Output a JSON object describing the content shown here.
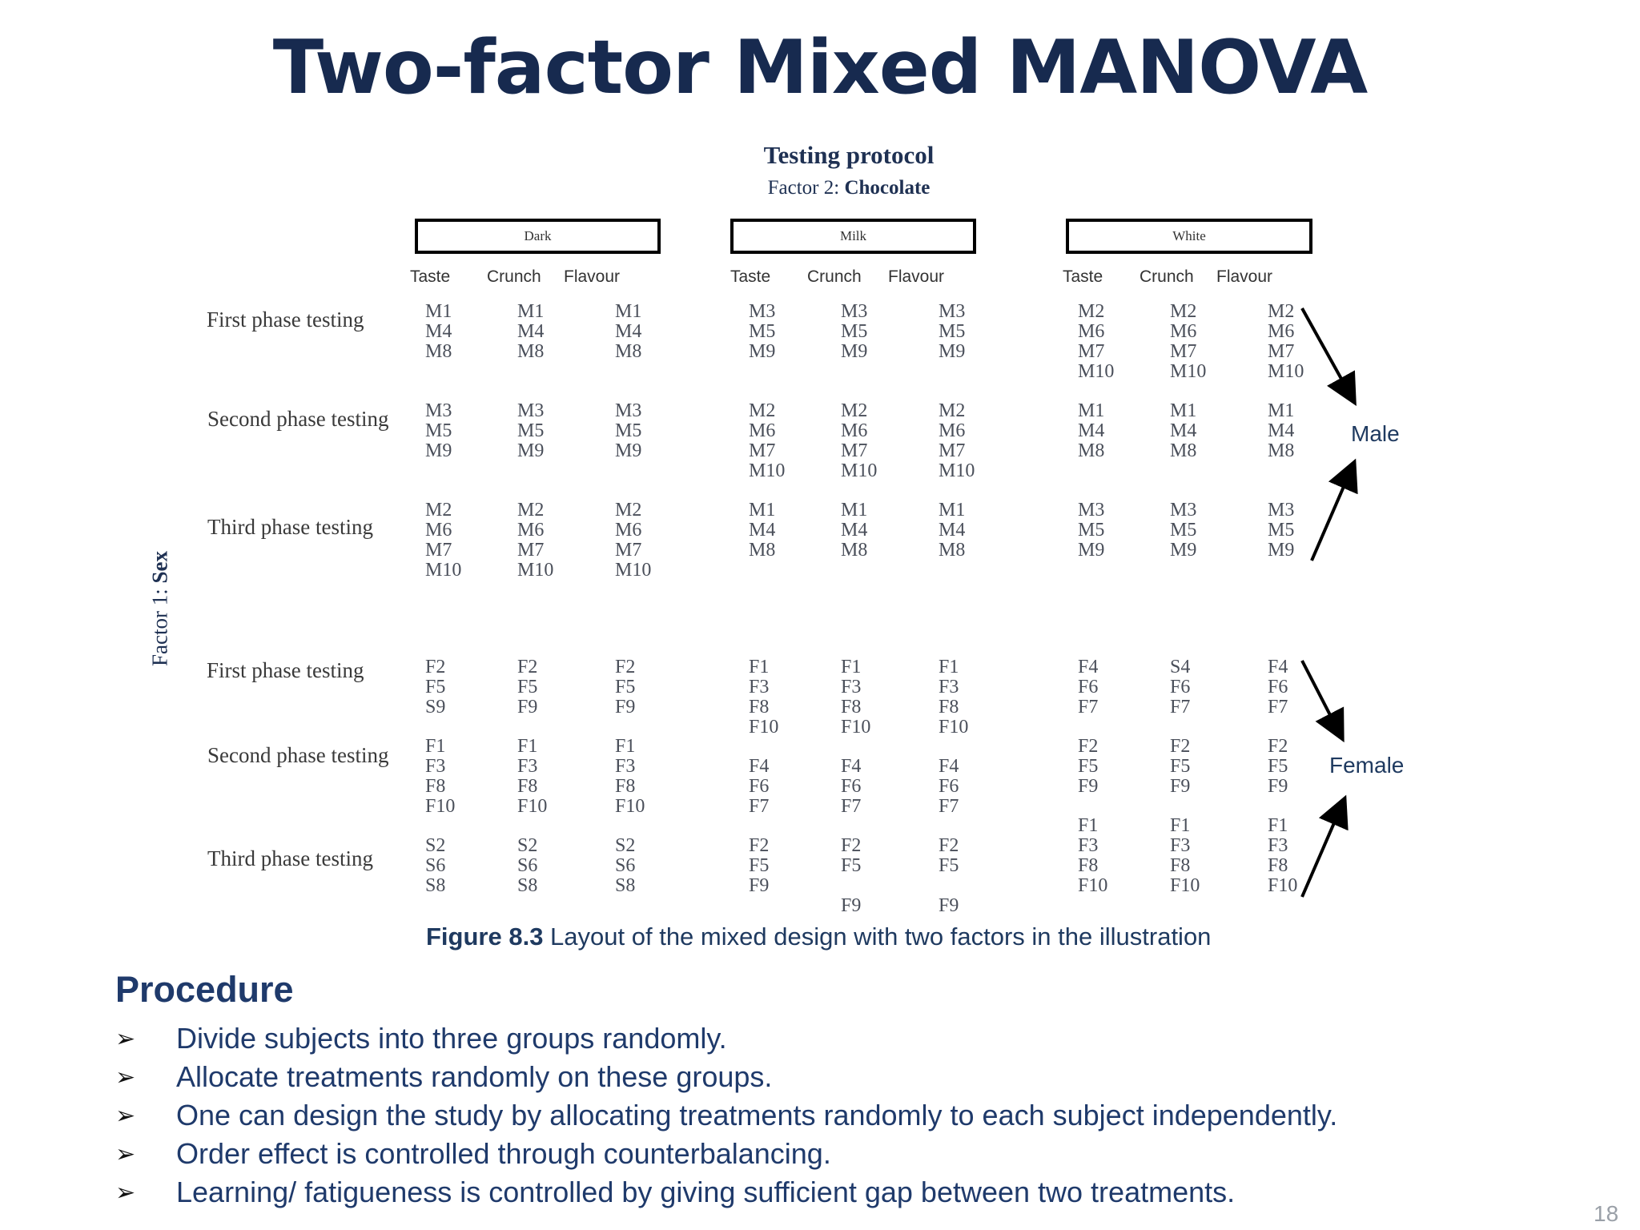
{
  "slide": {
    "title": "Two-factor Mixed MANOVA",
    "page_number": "18"
  },
  "figure": {
    "title": "Testing protocol",
    "subtitle_prefix": "Factor 2: ",
    "subtitle_bold": "Chocolate",
    "factor1_prefix": "Factor 1: ",
    "factor1_bold": "Sex",
    "chocolates": [
      "Dark",
      "Milk",
      "White"
    ],
    "attributes": [
      "Taste",
      "Crunch",
      "Flavour"
    ],
    "male_label": "Male",
    "female_label": "Female",
    "row_labels": [
      "First phase testing",
      "Second phase testing",
      "Third phase testing",
      "First phase testing",
      "Second phase testing",
      "Third phase  testing"
    ],
    "cells": {
      "r1": [
        "M1\nM4\nM8",
        "M1\nM4\nM8",
        "M1\nM4\nM8",
        "M3\nM5\nM9",
        "M3\nM5\nM9",
        "M3\nM5\nM9",
        "M2\nM6\nM7\nM10",
        "M2\nM6\nM7\nM10",
        "M2\nM6\nM7\nM10"
      ],
      "r2": [
        "M3\nM5\nM9",
        "M3\nM5\nM9",
        "M3\nM5\nM9",
        "M2\nM6\nM7\nM10",
        "M2\nM6\nM7\nM10",
        "M2\nM6\nM7\nM10",
        "M1\nM4\nM8",
        "M1\nM4\nM8",
        "M1\nM4\nM8"
      ],
      "r3": [
        "M2\nM6\nM7\nM10",
        "M2\nM6\nM7\nM10",
        "M2\nM6\nM7\nM10",
        "M1\nM4\nM8",
        "M1\nM4\nM8",
        "M1\nM4\nM8",
        "M3\nM5\nM9",
        "M3\nM5\nM9",
        "M3\nM5\nM9"
      ],
      "r4": [
        "F2\nF5\nS9",
        "F2\nF5\nF9",
        "F2\nF5\nF9",
        "F1\nF3\nF8\nF10",
        "F1\nF3\nF8\nF10",
        "F1\nF3\nF8\nF10",
        "F4\nF6\nF7",
        "S4\nF6\nF7",
        "F4\nF6\nF7"
      ],
      "r5": [
        "F1\nF3\nF8\nF10",
        "F1\nF3\nF8\nF10",
        "F1\nF3\nF8\nF10",
        "F4\nF6\nF7",
        "F4\nF6\nF7",
        "F4\nF6\nF7",
        "F2\nF5\nF9",
        "F2\nF5\nF9",
        "F2\nF5\nF9"
      ],
      "r6": [
        "S2\nS6\nS8",
        "S2\nS6\nS8",
        "S2\nS6\nS8",
        "F2\nF5\nF9",
        "F2\nF5\n\nF9",
        "F2\nF5\n\nF9",
        "F1\nF3\nF8\nF10",
        "F1\nF3\nF8\nF10",
        "F1\nF3\nF8\nF10"
      ]
    },
    "caption_bold": "Figure 8.3",
    "caption_text": " Layout of the mixed design with two factors in the illustration"
  },
  "procedure": {
    "heading": "Procedure",
    "bullet_symbol": "➢",
    "items": [
      "Divide subjects into three groups randomly.",
      "Allocate treatments randomly on these groups.",
      "One can design the study by allocating treatments randomly to each subject independently.",
      "Order effect is controlled through counterbalancing.",
      "Learning/ fatigueness is controlled by giving sufficient gap between two treatments."
    ]
  }
}
